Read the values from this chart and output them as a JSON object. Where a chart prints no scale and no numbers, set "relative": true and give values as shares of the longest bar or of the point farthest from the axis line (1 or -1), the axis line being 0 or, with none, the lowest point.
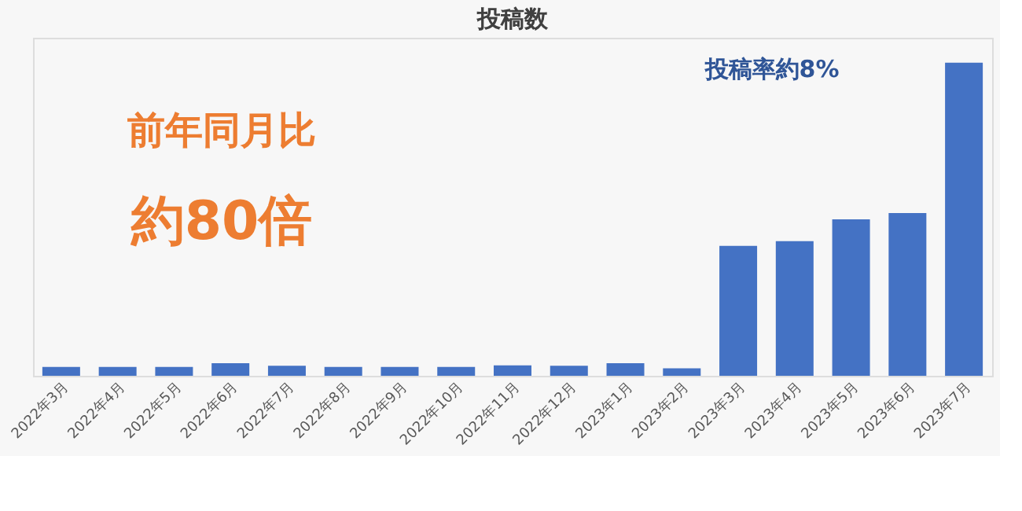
{
  "chart_data": {
    "type": "bar",
    "title": "投稿数",
    "relative": true,
    "color": "#4472c4",
    "categories": [
      "2022年3月",
      "2022年4月",
      "2022年5月",
      "2022年6月",
      "2022年7月",
      "2022年8月",
      "2022年9月",
      "2022年10月",
      "2022年11月",
      "2022年12月",
      "2023年1月",
      "2023年2月",
      "2023年3月",
      "2023年4月",
      "2023年5月",
      "2023年6月",
      "2023年7月"
    ],
    "values": [
      0.028,
      0.028,
      0.028,
      0.04,
      0.032,
      0.028,
      0.028,
      0.028,
      0.033,
      0.032,
      0.04,
      0.024,
      0.415,
      0.43,
      0.5,
      0.52,
      1
    ],
    "annotations": [
      "前年同月比",
      "約80倍",
      "投稿率約8%"
    ],
    "grid": false
  }
}
